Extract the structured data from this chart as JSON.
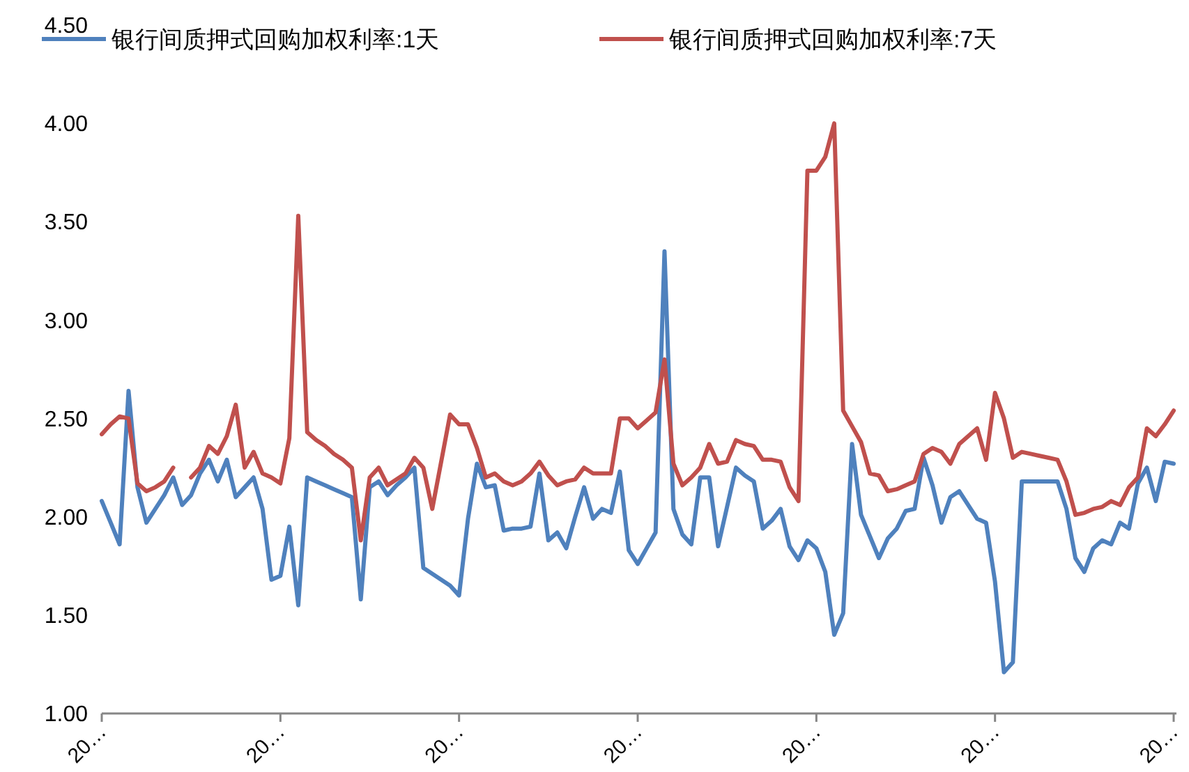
{
  "chart_data": {
    "type": "line",
    "legend": "top",
    "grid": false,
    "marker": "none",
    "line_style": "solid",
    "categories": [
      "20…",
      null,
      null,
      null,
      null,
      null,
      null,
      null,
      null,
      null,
      null,
      null,
      null,
      null,
      null,
      null,
      null,
      null,
      null,
      null,
      "20…",
      null,
      null,
      null,
      null,
      null,
      null,
      null,
      null,
      null,
      null,
      null,
      null,
      null,
      null,
      null,
      null,
      null,
      null,
      null,
      "20…",
      null,
      null,
      null,
      null,
      null,
      null,
      null,
      null,
      null,
      null,
      null,
      null,
      null,
      null,
      null,
      null,
      null,
      null,
      null,
      "20…",
      null,
      null,
      null,
      null,
      null,
      null,
      null,
      null,
      null,
      null,
      null,
      null,
      null,
      null,
      null,
      null,
      null,
      null,
      null,
      "20…",
      null,
      null,
      null,
      null,
      null,
      null,
      null,
      null,
      null,
      null,
      null,
      null,
      null,
      null,
      null,
      null,
      null,
      null,
      null,
      "20…",
      null,
      null,
      null,
      null,
      null,
      null,
      null,
      null,
      null,
      null,
      null,
      null,
      null,
      null,
      null,
      null,
      null,
      null,
      null,
      "20…"
    ],
    "ylim": [
      1,
      4.5
    ],
    "yticks": [
      {
        "value": 1,
        "label": "1.00"
      },
      {
        "value": 1.5,
        "label": "1.50"
      },
      {
        "value": 2,
        "label": "2.00"
      },
      {
        "value": 2.5,
        "label": "2.50"
      },
      {
        "value": 3,
        "label": "3.00"
      },
      {
        "value": 3.5,
        "label": "3.50"
      },
      {
        "value": 4,
        "label": "4.00"
      },
      {
        "value": 4.5,
        "label": "4.50"
      }
    ],
    "series": [
      {
        "name": "银行间质押式回购加权利率:1天",
        "color": "#4f81bd",
        "values": [
          2.08,
          1.97,
          1.86,
          2.64,
          2.15,
          1.97,
          2.04,
          2.11,
          2.2,
          2.06,
          2.11,
          2.22,
          2.29,
          2.18,
          2.29,
          2.1,
          2.15,
          2.2,
          2.04,
          1.68,
          1.7,
          1.95,
          1.55,
          2.2,
          2.18,
          2.16,
          2.14,
          2.12,
          2.1,
          1.58,
          2.15,
          2.18,
          2.11,
          2.16,
          2.2,
          2.25,
          1.74,
          1.71,
          1.68,
          1.65,
          1.6,
          1.99,
          2.27,
          2.15,
          2.16,
          1.93,
          1.94,
          1.94,
          1.95,
          2.22,
          1.88,
          1.92,
          1.84,
          2,
          2.15,
          1.99,
          2.04,
          2.02,
          2.23,
          1.83,
          1.76,
          1.84,
          1.92,
          3.35,
          2.04,
          1.91,
          1.86,
          2.2,
          2.2,
          1.85,
          2.05,
          2.25,
          2.21,
          2.18,
          1.94,
          1.98,
          2.04,
          1.85,
          1.78,
          1.88,
          1.84,
          1.72,
          1.4,
          1.51,
          2.37,
          2.01,
          1.9,
          1.79,
          1.89,
          1.94,
          2.03,
          2.04,
          2.3,
          2.16,
          1.97,
          2.1,
          2.13,
          2.06,
          1.99,
          1.97,
          1.67,
          1.21,
          1.26,
          2.18,
          2.18,
          2.18,
          2.18,
          2.18,
          2.04,
          1.79,
          1.72,
          1.84,
          1.88,
          1.86,
          1.97,
          1.94,
          2.17,
          2.25,
          2.08,
          2.28,
          2.27
        ]
      },
      {
        "name": "银行间质押式回购加权利率:7天",
        "color": "#c0504d",
        "values": [
          2.42,
          2.47,
          2.51,
          2.5,
          2.17,
          2.13,
          2.15,
          2.18,
          2.25,
          null,
          2.2,
          2.25,
          2.36,
          2.32,
          2.41,
          2.57,
          2.25,
          2.33,
          2.22,
          2.2,
          2.17,
          2.4,
          3.53,
          2.43,
          2.39,
          2.36,
          2.32,
          2.29,
          2.25,
          1.88,
          2.2,
          2.25,
          2.16,
          2.19,
          2.22,
          2.3,
          2.25,
          2.04,
          2.28,
          2.52,
          2.47,
          2.47,
          2.35,
          2.2,
          2.22,
          2.18,
          2.16,
          2.18,
          2.22,
          2.28,
          2.21,
          2.16,
          2.18,
          2.19,
          2.25,
          2.22,
          2.22,
          2.22,
          2.5,
          2.5,
          2.45,
          2.49,
          2.53,
          2.8,
          2.27,
          2.16,
          2.2,
          2.25,
          2.37,
          2.27,
          2.28,
          2.39,
          2.37,
          2.36,
          2.29,
          2.29,
          2.28,
          2.15,
          2.08,
          3.76,
          3.76,
          3.83,
          4,
          2.54,
          2.46,
          2.38,
          2.22,
          2.21,
          2.13,
          2.14,
          2.16,
          2.18,
          2.32,
          2.35,
          2.33,
          2.27,
          2.37,
          2.41,
          2.45,
          2.29,
          2.63,
          2.5,
          2.3,
          2.33,
          2.32,
          2.31,
          2.3,
          2.29,
          2.18,
          2.01,
          2.02,
          2.04,
          2.05,
          2.08,
          2.06,
          2.15,
          2.2,
          2.45,
          2.41,
          2.47,
          2.54
        ]
      }
    ]
  }
}
